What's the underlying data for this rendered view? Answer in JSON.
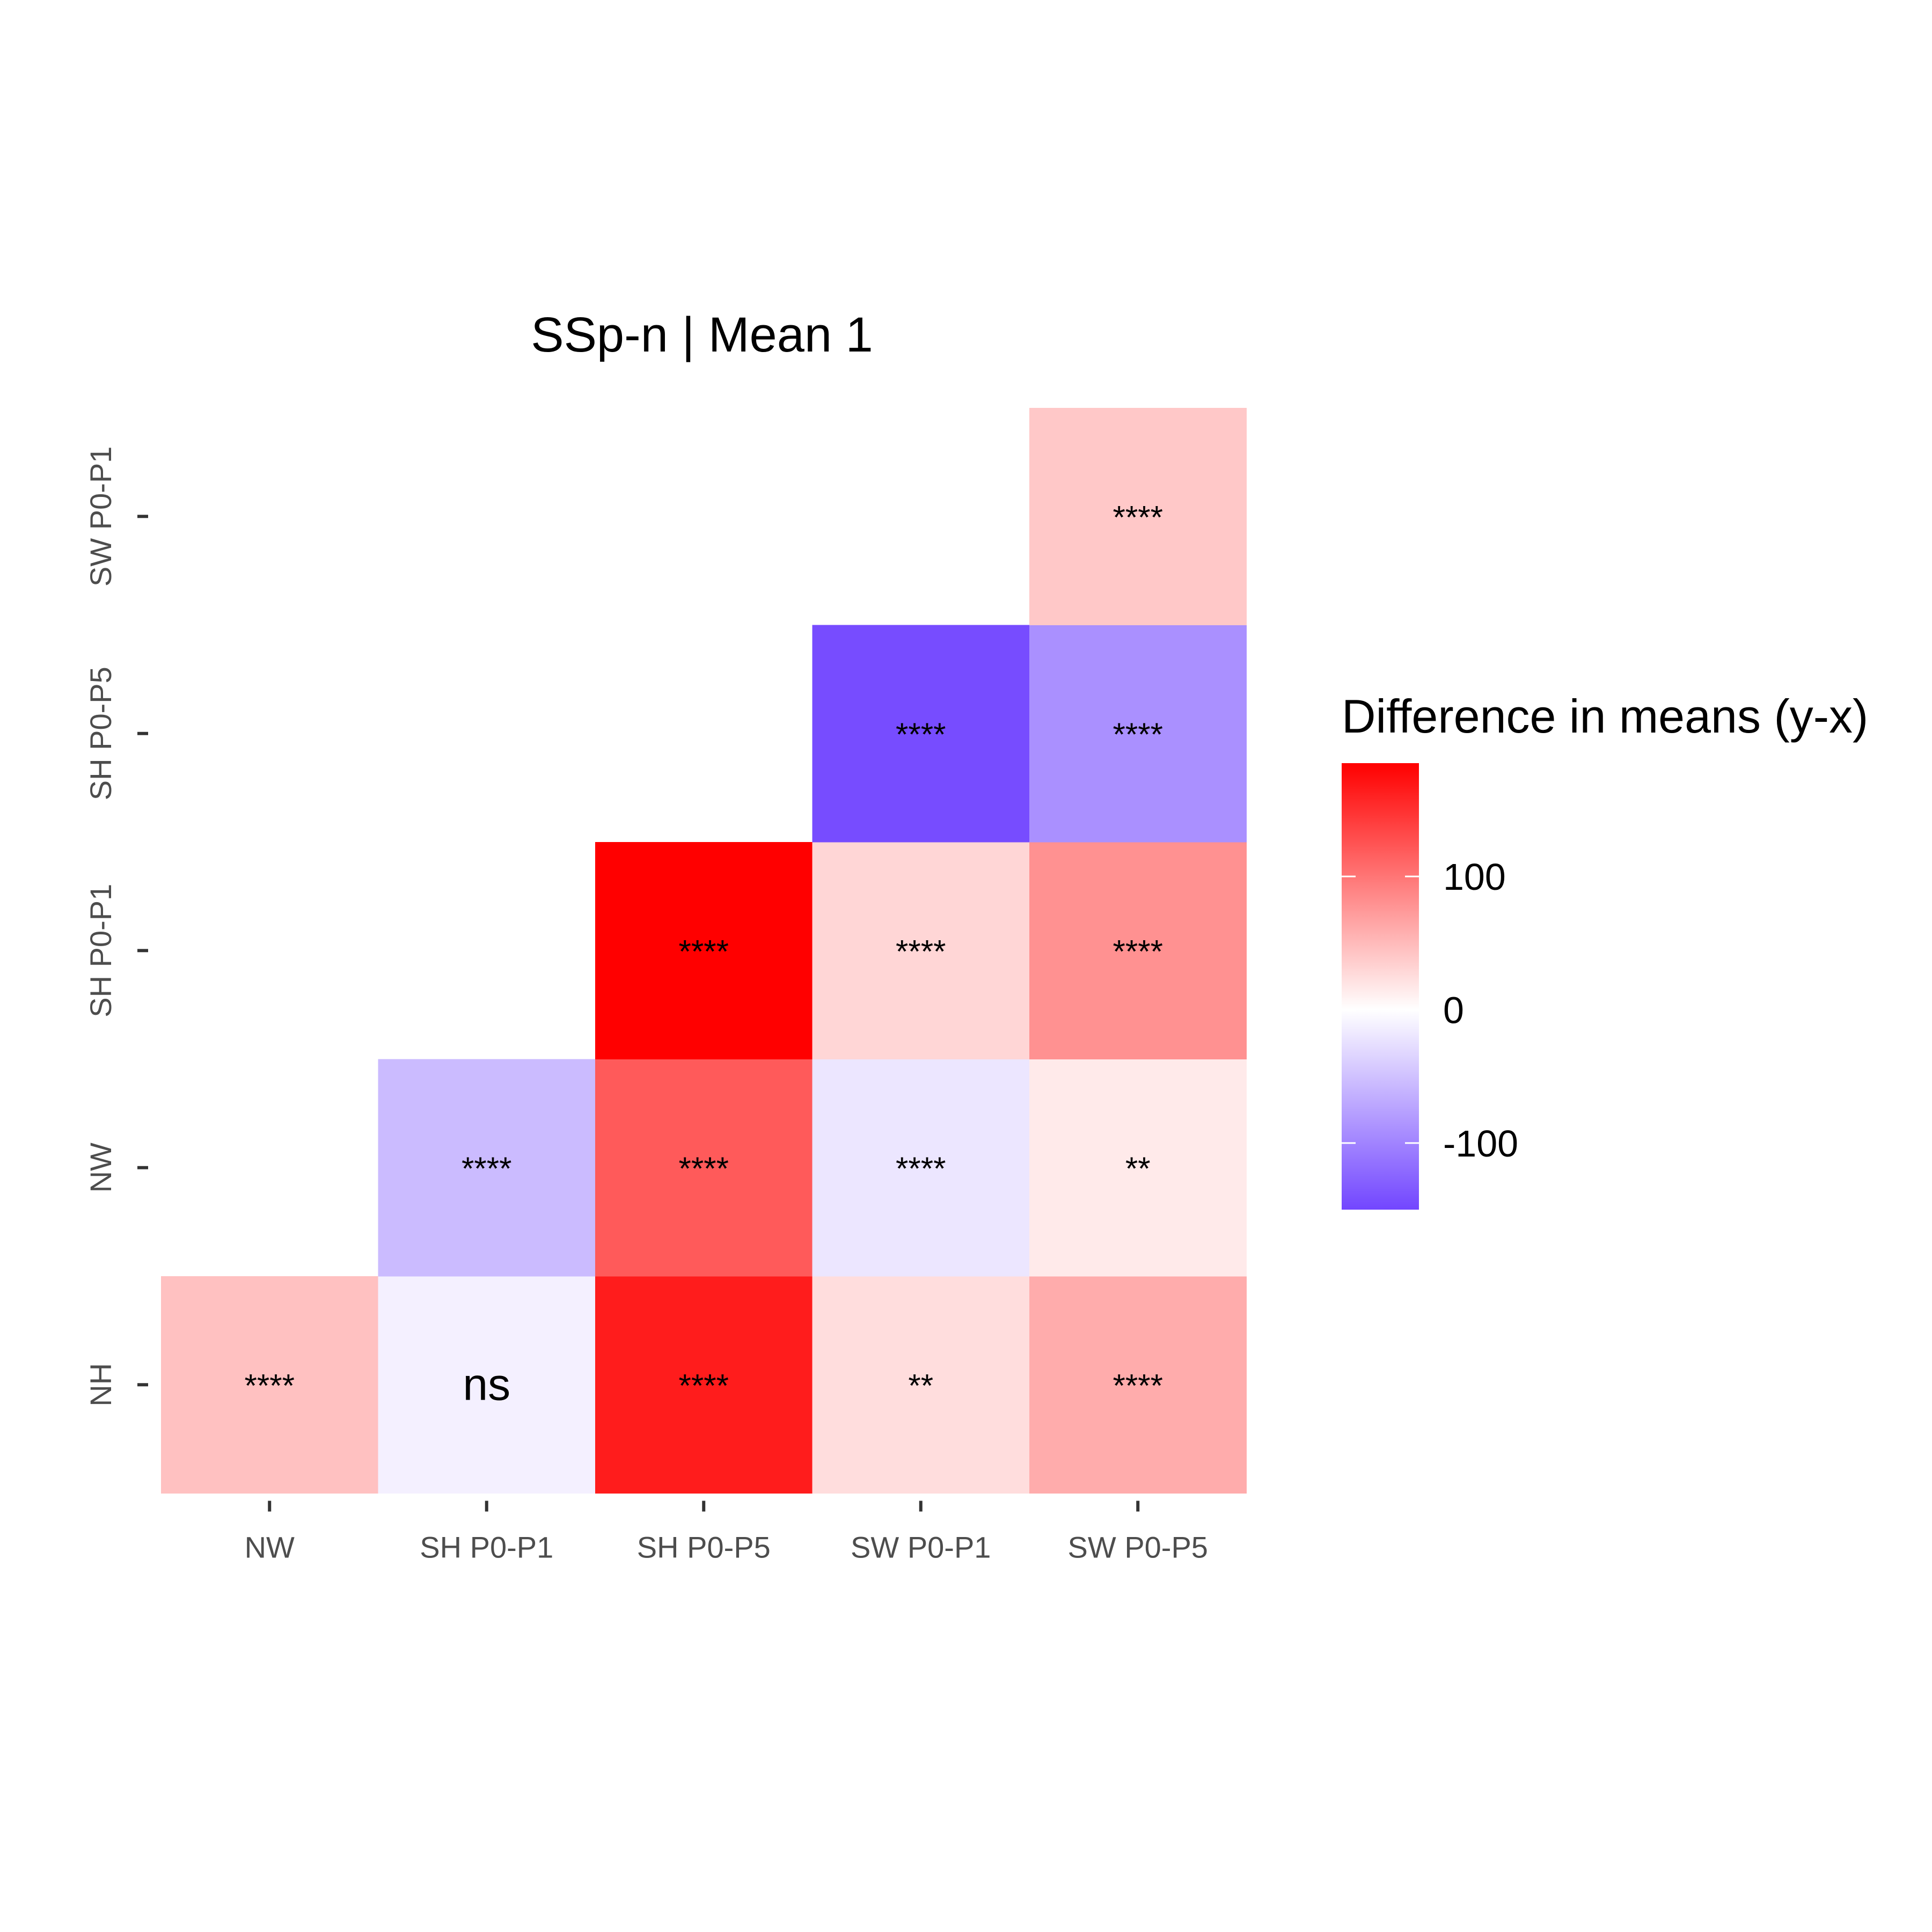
{
  "chart_data": {
    "type": "heatmap",
    "title": "SSp-n | Mean 1",
    "x_categories": [
      "NW",
      "SH P0-P1",
      "SH P0-P5",
      "SW P0-P1",
      "SW P0-P5"
    ],
    "y_categories": [
      "NH",
      "NW",
      "SH P0-P1",
      "SH P0-P5",
      "SW P0-P1"
    ],
    "xlabel": "",
    "ylabel": "",
    "cells": [
      {
        "x": "NW",
        "y": "NH",
        "value": 45,
        "label": "****"
      },
      {
        "x": "SH P0-P1",
        "y": "NH",
        "value": -12,
        "label": "ns"
      },
      {
        "x": "SH P0-P5",
        "y": "NH",
        "value": 165,
        "label": "****"
      },
      {
        "x": "SW P0-P1",
        "y": "NH",
        "value": 25,
        "label": "**"
      },
      {
        "x": "SW P0-P5",
        "y": "NH",
        "value": 60,
        "label": "****"
      },
      {
        "x": "SH P0-P1",
        "y": "NW",
        "value": -55,
        "label": "****"
      },
      {
        "x": "SH P0-P5",
        "y": "NW",
        "value": 120,
        "label": "****"
      },
      {
        "x": "SW P0-P1",
        "y": "NW",
        "value": -20,
        "label": "****"
      },
      {
        "x": "SW P0-P5",
        "y": "NW",
        "value": 15,
        "label": "**"
      },
      {
        "x": "SH P0-P5",
        "y": "SH P0-P1",
        "value": 185,
        "label": "****"
      },
      {
        "x": "SW P0-P1",
        "y": "SH P0-P1",
        "value": 30,
        "label": "****"
      },
      {
        "x": "SW P0-P5",
        "y": "SH P0-P1",
        "value": 80,
        "label": "****"
      },
      {
        "x": "SW P0-P1",
        "y": "SH P0-P5",
        "value": -145,
        "label": "****"
      },
      {
        "x": "SW P0-P5",
        "y": "SH P0-P5",
        "value": -90,
        "label": "****"
      },
      {
        "x": "SW P0-P5",
        "y": "SW P0-P1",
        "value": 40,
        "label": "****"
      }
    ],
    "legend": {
      "title": "Difference in means (y-x)",
      "ticks": [
        100,
        0,
        -100
      ],
      "range": [
        -150,
        185
      ],
      "placement": "right"
    },
    "colors": {
      "low": "#7246FF",
      "mid": "#FFFFFF",
      "high": "#FF0000"
    },
    "grid": false
  }
}
